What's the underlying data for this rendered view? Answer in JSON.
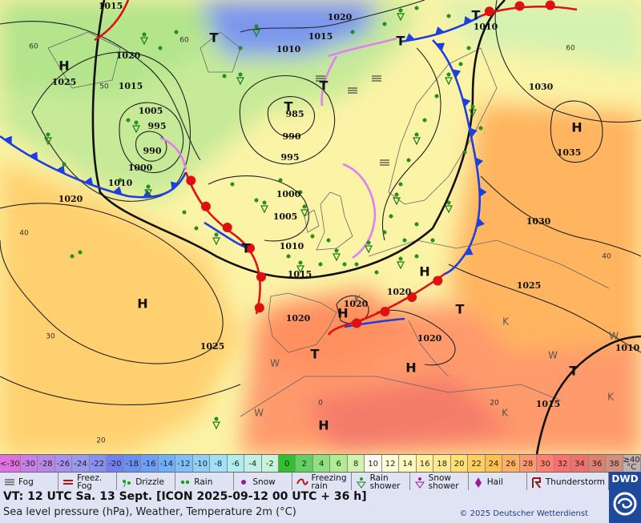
{
  "map": {
    "pressure_labels": [
      "1015",
      "1020",
      "1010",
      "1020",
      "1015",
      "1010",
      "1025",
      "1015",
      "1030",
      "1005",
      "985",
      "995",
      "990",
      "990",
      "1035",
      "995",
      "1000",
      "1010",
      "1020",
      "1000",
      "1005",
      "1030",
      "1010",
      "1015",
      "1025",
      "1020",
      "1020",
      "1020",
      "1020",
      "1025",
      "1010",
      "1015"
    ],
    "contour_labels": [
      "60",
      "60",
      "50",
      "60",
      "40",
      "30",
      "40",
      "20",
      "20",
      "0"
    ],
    "symbols": [
      "H",
      "H",
      "H",
      "H",
      "H",
      "H",
      "H",
      "T",
      "T",
      "T",
      "T",
      "T",
      "T",
      "T",
      "T",
      "T",
      "W",
      "W",
      "W",
      "W",
      "K",
      "K",
      "K",
      "K"
    ]
  },
  "legend": {
    "temperature_scale": {
      "labels": [
        "<-30",
        "-30",
        "-28",
        "-26",
        "-24",
        "-22",
        "-20",
        "-18",
        "-16",
        "-14",
        "-12",
        "-10",
        "-8",
        "-6",
        "-4",
        "-2",
        "0",
        "2",
        "4",
        "6",
        "8",
        "10",
        "12",
        "14",
        "16",
        "18",
        "20",
        "22",
        "24",
        "26",
        "28",
        "30",
        "32",
        "34",
        "36",
        "38",
        "≥40 °C"
      ],
      "colors": [
        "#e070e0",
        "#c880e8",
        "#b888e8",
        "#a890f0",
        "#9898f0",
        "#8890f0",
        "#7080f0",
        "#6890f0",
        "#6aa0f8",
        "#70b0f8",
        "#80c0f8",
        "#90d0f8",
        "#a0e0f8",
        "#b0ecf0",
        "#c0f0e8",
        "#c8f4d8",
        "#30c030",
        "#60d060",
        "#90e080",
        "#b0ec90",
        "#d0f4b0",
        "#fafaf0",
        "#ffffd8",
        "#fff8c0",
        "#fff0a0",
        "#ffe890",
        "#ffe070",
        "#ffd060",
        "#ffc050",
        "#ffb060",
        "#ff9870",
        "#ff8070",
        "#f87070",
        "#f07070",
        "#e08070",
        "#d09080",
        "#c0b0b0"
      ]
    },
    "weather": [
      "Fog",
      "Freez. Fog",
      "Drizzle",
      "Rain",
      "Snow",
      "Freezing rain",
      "Rain shower",
      "Snow shower",
      "Hail",
      "Thunderstorm"
    ]
  },
  "footer": {
    "valid_time": "VT: 12 UTC Sa.  13 Sept. [ICON 2025-09-12  00 UTC + 36 h]",
    "description": "Sea level pressure (hPa), Weather, Temperature 2m (°C)",
    "copyright": "© 2025 Deutscher Wetterdienst",
    "logo": "DWD"
  }
}
